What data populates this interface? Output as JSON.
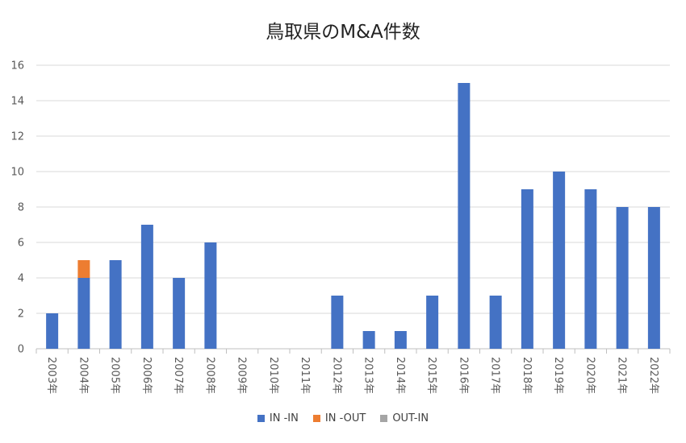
{
  "chart_data": {
    "type": "bar",
    "stacked": true,
    "title": "鳥取県のM&A件数",
    "categories": [
      "2003年",
      "2004年",
      "2005年",
      "2006年",
      "2007年",
      "2008年",
      "2009年",
      "2010年",
      "2011年",
      "2012年",
      "2013年",
      "2014年",
      "2015年",
      "2016年",
      "2017年",
      "2018年",
      "2019年",
      "2020年",
      "2021年",
      "2022年"
    ],
    "series": [
      {
        "name": "IN -IN",
        "color": "#4472C4",
        "values": [
          2,
          4,
          5,
          7,
          4,
          6,
          0,
          0,
          0,
          3,
          1,
          1,
          3,
          15,
          3,
          9,
          10,
          9,
          8,
          8
        ]
      },
      {
        "name": "IN -OUT",
        "color": "#ED7D31",
        "values": [
          0,
          1,
          0,
          0,
          0,
          0,
          0,
          0,
          0,
          0,
          0,
          0,
          0,
          0,
          0,
          0,
          0,
          0,
          0,
          0
        ]
      },
      {
        "name": "OUT-IN",
        "color": "#A5A5A5",
        "values": [
          0,
          0,
          0,
          0,
          0,
          0,
          0,
          0,
          0,
          0,
          0,
          0,
          0,
          0,
          0,
          0,
          0,
          0,
          0,
          0
        ]
      }
    ],
    "ylim": [
      0,
      16
    ],
    "yticks": [
      0,
      2,
      4,
      6,
      8,
      10,
      12,
      14,
      16
    ],
    "grid": true,
    "legend": "bottom"
  }
}
